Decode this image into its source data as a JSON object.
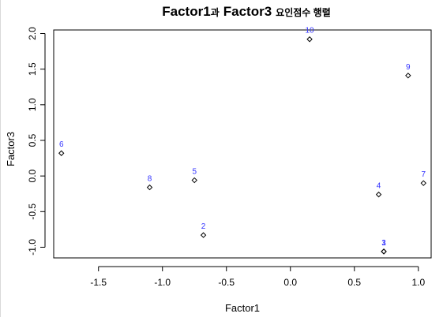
{
  "chart_data": {
    "type": "scatter",
    "title": {
      "part1": "Factor1",
      "part2": "과",
      "part3": "Factor3",
      "part4": "요인점수 행렬"
    },
    "xlabel": "Factor1",
    "ylabel": "Factor3",
    "xlim": [
      -1.85,
      1.1
    ],
    "ylim": [
      -1.15,
      2.05
    ],
    "xticks": [
      {
        "value": -1.5,
        "label": "-1.5"
      },
      {
        "value": -1.0,
        "label": "-1.0"
      },
      {
        "value": -0.5,
        "label": "-0.5"
      },
      {
        "value": 0.0,
        "label": "0.0"
      },
      {
        "value": 0.5,
        "label": "0.5"
      },
      {
        "value": 1.0,
        "label": "1.0"
      }
    ],
    "yticks": [
      {
        "value": -1.0,
        "label": "-1.0"
      },
      {
        "value": -0.5,
        "label": "-0.5"
      },
      {
        "value": 0.0,
        "label": "0.0"
      },
      {
        "value": 0.5,
        "label": "0.5"
      },
      {
        "value": 1.0,
        "label": "1.0"
      },
      {
        "value": 1.5,
        "label": "1.5"
      },
      {
        "value": 2.0,
        "label": "2.0"
      }
    ],
    "points": [
      {
        "label": "6",
        "x": -1.79,
        "y": 0.32
      },
      {
        "label": "8",
        "x": -1.1,
        "y": -0.16
      },
      {
        "label": "5",
        "x": -0.75,
        "y": -0.06
      },
      {
        "label": "2",
        "x": -0.68,
        "y": -0.83
      },
      {
        "label": "10",
        "x": 0.15,
        "y": 1.92
      },
      {
        "label": "4",
        "x": 0.69,
        "y": -0.26
      },
      {
        "label": "1",
        "x": 0.73,
        "y": -1.06
      },
      {
        "label": "3",
        "x": 0.73,
        "y": -1.06
      },
      {
        "label": "9",
        "x": 0.92,
        "y": 1.41
      },
      {
        "label": "7",
        "x": 1.04,
        "y": -0.1
      }
    ],
    "point_color": "#000000",
    "label_color": "#3333ff",
    "grid": false,
    "legend": "none"
  }
}
